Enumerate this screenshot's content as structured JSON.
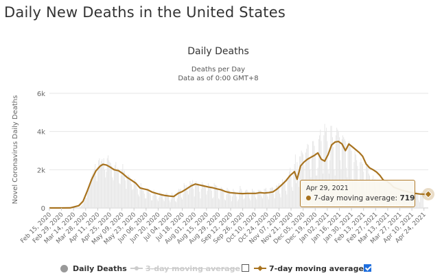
{
  "page": {
    "title": "Daily New Deaths in the United States"
  },
  "colors": {
    "daily": "#e6e6e6",
    "avg3": "#cccccc",
    "avg7": "#a8731f",
    "grid": "#e6e6e6",
    "text": "#666666",
    "checkbox": "#1f6fde"
  },
  "chart_data": {
    "type": "bar",
    "title": "Daily Deaths",
    "subtitle": [
      "Deaths per Day",
      "Data as of 0:00 GMT+8"
    ],
    "ylabel": "Novel Coronavirus Daily Deaths",
    "xlabel": "",
    "ylim": [
      0,
      6000
    ],
    "yticks": [
      0,
      2000,
      4000,
      6000
    ],
    "ytick_labels": [
      "0",
      "2k",
      "4k",
      "6k"
    ],
    "grid": true,
    "x_start": "2020-02-15",
    "x_end": "2021-04-29",
    "xtick_labels": [
      "Feb 15, 2020",
      "Feb 29, 2020",
      "Mar 14, 2020",
      "Mar 28, 2020",
      "Apr 11, 2020",
      "Apr 25, 2020",
      "May 09, 2020",
      "May 23, 2020",
      "Jun 06, 2020",
      "Jun 20, 2020",
      "Jul 04, 2020",
      "Jul 18, 2020",
      "Aug 01, 2020",
      "Aug 15, 2020",
      "Aug 29, 2020",
      "Sep 12, 2020",
      "Sep 26, 2020",
      "Oct 10, 2020",
      "Oct 24, 2020",
      "Nov 07, 2020",
      "Nov 21, 2020",
      "Dec 05, 2020",
      "Dec 19, 2020",
      "Jan 02, 2021",
      "Jan 16, 2021",
      "Jan 30, 2021",
      "Feb 13, 2021",
      "Feb 27, 2021",
      "Mar 13, 2021",
      "Mar 27, 2021",
      "Apr 10, 2021",
      "Apr 24, 2021"
    ],
    "series": [
      {
        "name": "Daily Deaths",
        "type": "bar",
        "visible": true,
        "values": [
          0,
          0,
          0,
          0,
          0,
          0,
          0,
          0,
          0,
          0,
          0,
          0,
          0,
          0,
          1,
          0,
          0,
          1,
          0,
          0,
          0,
          0,
          0,
          0,
          4,
          2,
          1,
          1,
          5,
          2,
          7,
          9,
          11,
          17,
          21,
          45,
          55,
          110,
          160,
          230,
          290,
          390,
          520,
          530,
          780,
          950,
          1100,
          1320,
          1500,
          1680,
          1800,
          1920,
          2050,
          2300,
          1700,
          1400,
          2150,
          2500,
          2600,
          2300,
          2450,
          2550,
          2350,
          2600,
          2000,
          1600,
          1900,
          2600,
          2750,
          2500,
          2400,
          2350,
          2200,
          1600,
          1450,
          2100,
          2250,
          2400,
          2000,
          2100,
          2050,
          1300,
          1250,
          1700,
          2000,
          2300,
          1900,
          1950,
          1450,
          1000,
          1550,
          1750,
          1700,
          1650,
          1500,
          1250,
          950,
          1000,
          1400,
          1500,
          1300,
          1150,
          1000,
          700,
          600,
          1100,
          1300,
          1050,
          950,
          900,
          750,
          500,
          500,
          950,
          1000,
          850,
          800,
          750,
          400,
          400,
          650,
          950,
          800,
          750,
          650,
          450,
          350,
          550,
          850,
          750,
          700,
          650,
          450,
          350,
          600,
          750,
          800,
          700,
          650,
          400,
          300,
          450,
          800,
          700,
          600,
          700,
          350,
          300,
          500,
          900,
          1000,
          950,
          1000,
          550,
          450,
          750,
          1300,
          1200,
          1000,
          1200,
          900,
          700,
          1100,
          1400,
          1300,
          1300,
          1450,
          1000,
          600,
          1300,
          1400,
          1250,
          1300,
          1200,
          850,
          500,
          1000,
          1350,
          1250,
          1200,
          1100,
          1050,
          700,
          900,
          1300,
          1200,
          1100,
          1100,
          900,
          500,
          550,
          1300,
          1200,
          1200,
          1150,
          950,
          500,
          450,
          950,
          1100,
          1050,
          1000,
          850,
          450,
          400,
          700,
          1050,
          950,
          950,
          900,
          650,
          350,
          600,
          1000,
          900,
          850,
          800,
          600,
          350,
          450,
          900,
          1150,
          1000,
          900,
          700,
          450,
          500,
          900,
          950,
          950,
          850,
          800,
          500,
          400,
          700,
          1000,
          900,
          900,
          850,
          550,
          450,
          750,
          950,
          900,
          950,
          900,
          600,
          500,
          700,
          1000,
          1000,
          1050,
          900,
          600,
          450,
          850,
          1050,
          1050,
          1100,
          1050,
          750,
          500,
          850,
          1200,
          1150,
          1200,
          1300,
          750,
          550,
          1200,
          1500,
          1350,
          1450,
          1400,
          900,
          700,
          1500,
          1700,
          1900,
          2100,
          1650,
          1100,
          900,
          1950,
          2300,
          2800,
          1300,
          2400,
          1450,
          1100,
          2700,
          2700,
          3000,
          2900,
          2800,
          2250,
          1500,
          2900,
          3100,
          3350,
          3300,
          2650,
          2000,
          1600,
          2800,
          3500,
          3500,
          3250,
          2900,
          1700,
          1700,
          2100,
          3600,
          3800,
          4100,
          3500,
          2500,
          1800,
          3800,
          4400,
          4000,
          4200,
          3500,
          2000,
          1800,
          2500,
          4300,
          4300,
          3700,
          3200,
          2000,
          1700,
          3800,
          4200,
          4100,
          4000,
          3700,
          2500,
          2000,
          3600,
          3800,
          3700,
          3600,
          3500,
          2100,
          1600,
          3200,
          3500,
          3400,
          3200,
          3000,
          1500,
          1200,
          2400,
          3000,
          2800,
          2500,
          2200,
          1300,
          1100,
          2400,
          2600,
          2400,
          2300,
          1900,
          900,
          900,
          2200,
          2300,
          2300,
          1800,
          1700,
          900,
          700,
          1500,
          1700,
          1400,
          1500,
          1100,
          600,
          550,
          1300,
          1300,
          1200,
          1300,
          900,
          500,
          450,
          1000,
          1100,
          1000,
          950,
          800,
          450,
          400,
          850,
          950,
          900,
          850,
          700,
          350,
          300,
          800,
          900,
          850,
          800,
          650,
          300,
          300,
          750,
          900,
          900,
          800,
          700,
          350,
          300,
          800,
          850,
          850,
          750,
          600,
          300,
          250,
          700,
          900,
          850,
          800,
          700,
          400,
          300,
          750,
          850,
          800,
          750
        ]
      },
      {
        "name": "3-day moving average",
        "type": "line",
        "visible": false
      },
      {
        "name": "7-day moving average",
        "type": "line",
        "visible": true,
        "x": [
          "2020-02-15",
          "2020-03-01",
          "2020-03-10",
          "2020-03-20",
          "2020-03-25",
          "2020-03-30",
          "2020-04-04",
          "2020-04-09",
          "2020-04-14",
          "2020-04-17",
          "2020-04-21",
          "2020-04-25",
          "2020-04-30",
          "2020-05-05",
          "2020-05-10",
          "2020-05-15",
          "2020-05-20",
          "2020-05-25",
          "2020-05-30",
          "2020-06-03",
          "2020-06-08",
          "2020-06-13",
          "2020-06-18",
          "2020-06-23",
          "2020-06-28",
          "2020-07-03",
          "2020-07-08",
          "2020-07-13",
          "2020-07-18",
          "2020-07-23",
          "2020-07-28",
          "2020-08-02",
          "2020-08-07",
          "2020-08-12",
          "2020-08-17",
          "2020-08-22",
          "2020-08-27",
          "2020-09-01",
          "2020-09-06",
          "2020-09-11",
          "2020-09-16",
          "2020-09-21",
          "2020-09-26",
          "2020-10-01",
          "2020-10-06",
          "2020-10-11",
          "2020-10-16",
          "2020-10-21",
          "2020-10-26",
          "2020-10-31",
          "2020-11-05",
          "2020-11-10",
          "2020-11-15",
          "2020-11-20",
          "2020-11-25",
          "2020-11-28",
          "2020-12-02",
          "2020-12-06",
          "2020-12-10",
          "2020-12-14",
          "2020-12-18",
          "2020-12-22",
          "2020-12-26",
          "2020-12-30",
          "2021-01-03",
          "2021-01-07",
          "2021-01-11",
          "2021-01-15",
          "2021-01-19",
          "2021-01-23",
          "2021-01-27",
          "2021-01-31",
          "2021-02-04",
          "2021-02-08",
          "2021-02-12",
          "2021-02-16",
          "2021-02-20",
          "2021-02-24",
          "2021-02-28",
          "2021-03-04",
          "2021-03-08",
          "2021-03-12",
          "2021-03-16",
          "2021-03-20",
          "2021-03-25",
          "2021-03-30",
          "2021-04-04",
          "2021-04-09",
          "2021-04-14",
          "2021-04-19",
          "2021-04-24",
          "2021-04-29"
        ],
        "values": [
          0,
          0,
          5,
          120,
          350,
          900,
          1500,
          1950,
          2200,
          2280,
          2250,
          2150,
          2000,
          1950,
          1800,
          1600,
          1450,
          1300,
          1050,
          1000,
          950,
          830,
          760,
          700,
          650,
          620,
          600,
          760,
          860,
          1000,
          1150,
          1250,
          1200,
          1150,
          1100,
          1060,
          1000,
          950,
          860,
          800,
          780,
          760,
          750,
          760,
          760,
          760,
          800,
          780,
          800,
          840,
          1000,
          1200,
          1420,
          1700,
          1900,
          1500,
          2200,
          2400,
          2550,
          2650,
          2750,
          2880,
          2550,
          2450,
          2800,
          3300,
          3450,
          3480,
          3350,
          3000,
          3350,
          3200,
          3050,
          2900,
          2700,
          2300,
          2100,
          2000,
          1880,
          1700,
          1450,
          1400,
          1260,
          1080,
          1000,
          920,
          860,
          810,
          760,
          730,
          719,
          719
        ]
      }
    ],
    "tooltip": {
      "date": "Apr 29, 2021",
      "series": "7-day moving average",
      "value": "719"
    },
    "legend": {
      "position": "bottom-center",
      "items": [
        {
          "name": "Daily Deaths",
          "checkbox": false,
          "checked": false
        },
        {
          "name": "3-day moving average",
          "checkbox": true,
          "checked": false
        },
        {
          "name": "7-day moving average",
          "checkbox": true,
          "checked": true
        }
      ]
    }
  }
}
